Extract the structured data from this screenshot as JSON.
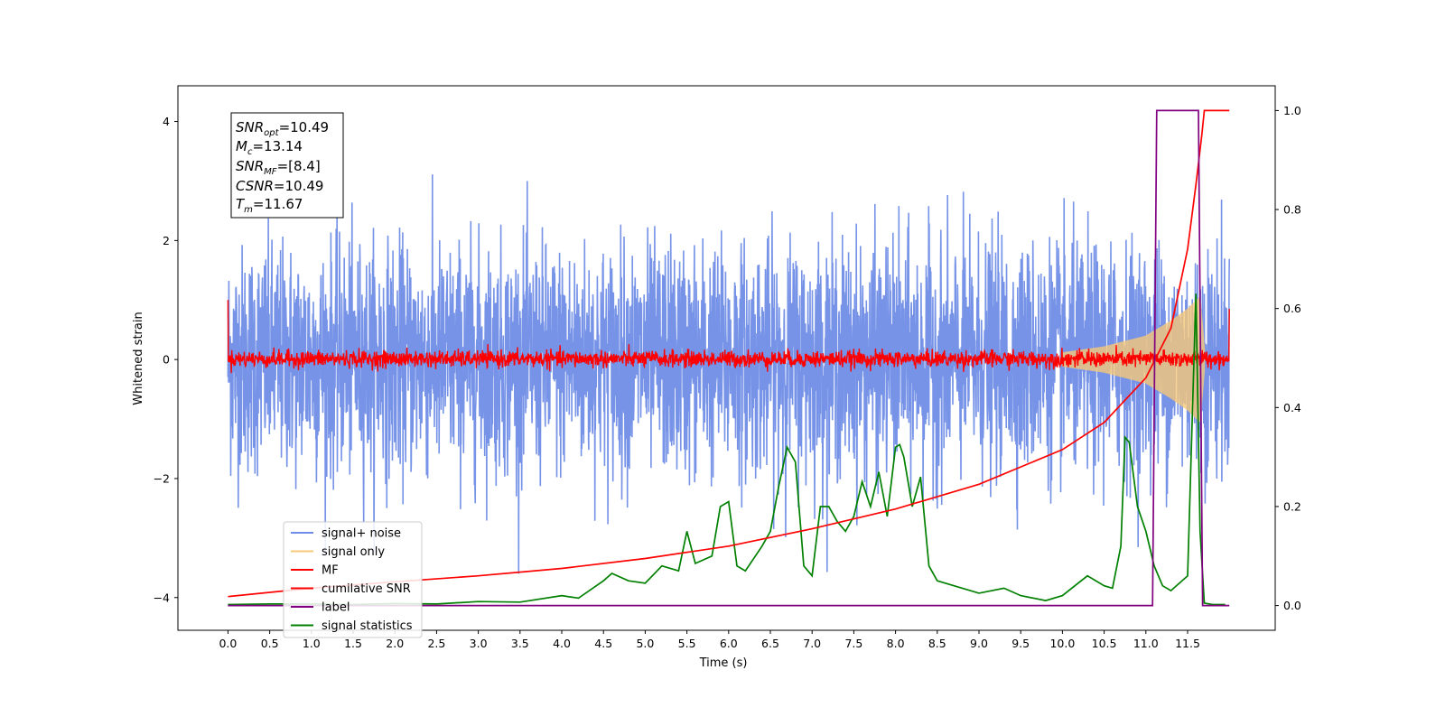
{
  "chart_data": {
    "type": "line",
    "xlabel": "Time (s)",
    "ylabel": "Whitened strain",
    "ylabel_right": "",
    "xlim": [
      -0.6,
      12.55
    ],
    "ylim": [
      -4.55,
      4.6
    ],
    "y2lim": [
      -0.05,
      1.05
    ],
    "x_ticks": [
      "0.0",
      "0.5",
      "1.0",
      "1.5",
      "2.0",
      "2.5",
      "3.0",
      "3.5",
      "4.0",
      "4.5",
      "5.0",
      "5.5",
      "6.0",
      "6.5",
      "7.0",
      "7.5",
      "8.0",
      "8.5",
      "9.0",
      "9.5",
      "10.0",
      "10.5",
      "11.0",
      "11.5"
    ],
    "y_ticks": [
      "4",
      "2",
      "0",
      "−2",
      "−4"
    ],
    "y2_ticks": [
      "1.0",
      "0.8",
      "0.6",
      "0.4",
      "0.2",
      "0.0"
    ],
    "legend_position": "lower-left",
    "grid": false,
    "annotation": {
      "snr_opt": "=10.49",
      "mc": "=13.14",
      "snr_mf": "=[8.4]",
      "csnr": "=10.49",
      "tm": "=11.67"
    },
    "series": [
      {
        "name": "signal+ noise",
        "color": "#6f8de6",
        "axis": "left",
        "description_values": {
          "x_start": 0.0,
          "x_end": 12.0,
          "typical_range": [
            -2.2,
            2.2
          ],
          "max": 4.18,
          "min": -4.1
        }
      },
      {
        "name": "signal only",
        "color": "#f5c87a",
        "axis": "left",
        "envelope": {
          "x": [
            10.0,
            10.5,
            11.0,
            11.3,
            11.5,
            11.65,
            11.7
          ],
          "amp": [
            0.12,
            0.22,
            0.4,
            0.65,
            0.85,
            1.05,
            0.2
          ]
        }
      },
      {
        "name": "MF",
        "color": "#ff0000",
        "axis": "left",
        "description_values": {
          "x_start": 0.0,
          "x_end": 12.0,
          "typical_range": [
            -0.15,
            0.2
          ],
          "start_value": 1.0,
          "end_value": 0.85
        }
      },
      {
        "name": "cumilative SNR",
        "color": "#ff0000",
        "axis": "right",
        "x": [
          0.0,
          1.0,
          2.0,
          3.0,
          4.0,
          5.0,
          6.0,
          7.0,
          8.0,
          9.0,
          10.0,
          10.5,
          11.0,
          11.3,
          11.5,
          11.6,
          11.67,
          11.7,
          12.0
        ],
        "values": [
          0.018,
          0.035,
          0.048,
          0.06,
          0.075,
          0.095,
          0.12,
          0.155,
          0.195,
          0.245,
          0.315,
          0.37,
          0.46,
          0.56,
          0.72,
          0.85,
          0.95,
          1.0,
          1.0
        ]
      },
      {
        "name": "label",
        "color": "#800080",
        "axis": "right",
        "x": [
          0.0,
          11.08,
          11.13,
          11.63,
          11.68,
          12.0
        ],
        "values": [
          0.0,
          0.0,
          1.0,
          1.0,
          0.0,
          0.0
        ]
      },
      {
        "name": "signal statistics",
        "color": "#008000",
        "axis": "right",
        "x": [
          0.0,
          0.5,
          1.0,
          1.5,
          2.0,
          2.5,
          3.0,
          3.5,
          4.0,
          4.2,
          4.5,
          4.6,
          4.8,
          5.0,
          5.2,
          5.4,
          5.5,
          5.6,
          5.8,
          5.9,
          6.0,
          6.1,
          6.2,
          6.4,
          6.5,
          6.6,
          6.7,
          6.8,
          6.9,
          7.0,
          7.1,
          7.2,
          7.3,
          7.4,
          7.5,
          7.6,
          7.7,
          7.8,
          7.9,
          8.0,
          8.05,
          8.1,
          8.2,
          8.3,
          8.4,
          8.5,
          8.7,
          9.0,
          9.3,
          9.5,
          9.8,
          10.0,
          10.3,
          10.5,
          10.6,
          10.7,
          10.75,
          10.8,
          10.9,
          11.0,
          11.1,
          11.2,
          11.3,
          11.5,
          11.6,
          11.65,
          11.7,
          11.8,
          11.95
        ],
        "values": [
          0.002,
          0.003,
          0.003,
          0.002,
          0.004,
          0.003,
          0.008,
          0.007,
          0.02,
          0.015,
          0.05,
          0.065,
          0.05,
          0.045,
          0.08,
          0.07,
          0.15,
          0.085,
          0.1,
          0.2,
          0.21,
          0.08,
          0.07,
          0.12,
          0.15,
          0.24,
          0.32,
          0.29,
          0.08,
          0.06,
          0.2,
          0.2,
          0.17,
          0.15,
          0.18,
          0.25,
          0.2,
          0.27,
          0.18,
          0.32,
          0.325,
          0.3,
          0.2,
          0.26,
          0.08,
          0.05,
          0.04,
          0.025,
          0.035,
          0.02,
          0.01,
          0.02,
          0.06,
          0.04,
          0.035,
          0.12,
          0.34,
          0.33,
          0.2,
          0.15,
          0.08,
          0.04,
          0.03,
          0.06,
          0.63,
          0.15,
          0.005,
          0.002,
          0.002
        ]
      }
    ]
  }
}
